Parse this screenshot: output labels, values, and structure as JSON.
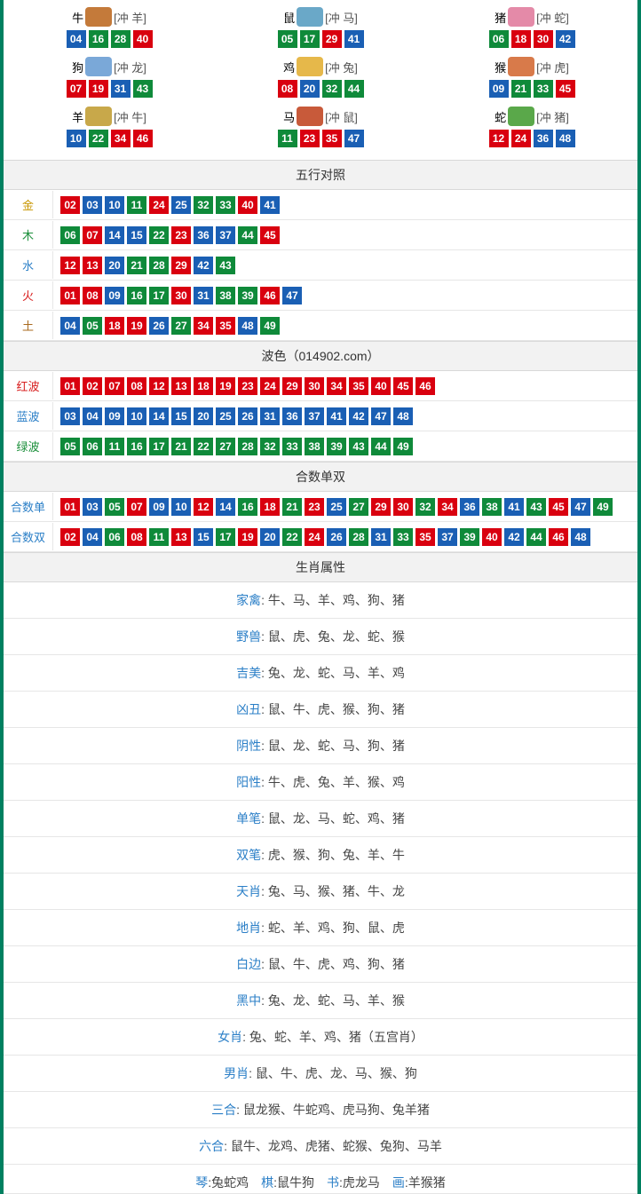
{
  "colors": {
    "red": "#d9000f",
    "blue": "#1a5fb4",
    "green": "#0f8a3a"
  },
  "zodiac_icon_colors": {
    "牛": "#c47a3a",
    "鼠": "#6aa8c8",
    "猪": "#e48aa8",
    "狗": "#7aa8d8",
    "鸡": "#e6b84a",
    "猴": "#d87a4a",
    "羊": "#c8a84a",
    "马": "#c85a3a",
    "蛇": "#5aa84a"
  },
  "zodiac": [
    {
      "name": "牛",
      "chong": "[冲 羊]",
      "balls": [
        [
          "04",
          "blue"
        ],
        [
          "16",
          "green"
        ],
        [
          "28",
          "green"
        ],
        [
          "40",
          "red"
        ]
      ]
    },
    {
      "name": "鼠",
      "chong": "[冲 马]",
      "balls": [
        [
          "05",
          "green"
        ],
        [
          "17",
          "green"
        ],
        [
          "29",
          "red"
        ],
        [
          "41",
          "blue"
        ]
      ]
    },
    {
      "name": "猪",
      "chong": "[冲 蛇]",
      "balls": [
        [
          "06",
          "green"
        ],
        [
          "18",
          "red"
        ],
        [
          "30",
          "red"
        ],
        [
          "42",
          "blue"
        ]
      ]
    },
    {
      "name": "狗",
      "chong": "[冲 龙]",
      "balls": [
        [
          "07",
          "red"
        ],
        [
          "19",
          "red"
        ],
        [
          "31",
          "blue"
        ],
        [
          "43",
          "green"
        ]
      ]
    },
    {
      "name": "鸡",
      "chong": "[冲 兔]",
      "balls": [
        [
          "08",
          "red"
        ],
        [
          "20",
          "blue"
        ],
        [
          "32",
          "green"
        ],
        [
          "44",
          "green"
        ]
      ]
    },
    {
      "name": "猴",
      "chong": "[冲 虎]",
      "balls": [
        [
          "09",
          "blue"
        ],
        [
          "21",
          "green"
        ],
        [
          "33",
          "green"
        ],
        [
          "45",
          "red"
        ]
      ]
    },
    {
      "name": "羊",
      "chong": "[冲 牛]",
      "balls": [
        [
          "10",
          "blue"
        ],
        [
          "22",
          "green"
        ],
        [
          "34",
          "red"
        ],
        [
          "46",
          "red"
        ]
      ]
    },
    {
      "name": "马",
      "chong": "[冲 鼠]",
      "balls": [
        [
          "11",
          "green"
        ],
        [
          "23",
          "red"
        ],
        [
          "35",
          "red"
        ],
        [
          "47",
          "blue"
        ]
      ]
    },
    {
      "name": "蛇",
      "chong": "[冲 猪]",
      "balls": [
        [
          "12",
          "red"
        ],
        [
          "24",
          "red"
        ],
        [
          "36",
          "blue"
        ],
        [
          "48",
          "blue"
        ]
      ]
    }
  ],
  "sections": {
    "wuxing_title": "五行对照",
    "bose_title": "波色（014902.com）",
    "heshu_title": "合数单双",
    "shengxiao_title": "生肖属性"
  },
  "wuxing": [
    {
      "label": "金",
      "cls": "lbl-gold",
      "balls": [
        [
          "02",
          "red"
        ],
        [
          "03",
          "blue"
        ],
        [
          "10",
          "blue"
        ],
        [
          "11",
          "green"
        ],
        [
          "24",
          "red"
        ],
        [
          "25",
          "blue"
        ],
        [
          "32",
          "green"
        ],
        [
          "33",
          "green"
        ],
        [
          "40",
          "red"
        ],
        [
          "41",
          "blue"
        ]
      ]
    },
    {
      "label": "木",
      "cls": "lbl-wood",
      "balls": [
        [
          "06",
          "green"
        ],
        [
          "07",
          "red"
        ],
        [
          "14",
          "blue"
        ],
        [
          "15",
          "blue"
        ],
        [
          "22",
          "green"
        ],
        [
          "23",
          "red"
        ],
        [
          "36",
          "blue"
        ],
        [
          "37",
          "blue"
        ],
        [
          "44",
          "green"
        ],
        [
          "45",
          "red"
        ]
      ]
    },
    {
      "label": "水",
      "cls": "lbl-water",
      "balls": [
        [
          "12",
          "red"
        ],
        [
          "13",
          "red"
        ],
        [
          "20",
          "blue"
        ],
        [
          "21",
          "green"
        ],
        [
          "28",
          "green"
        ],
        [
          "29",
          "red"
        ],
        [
          "42",
          "blue"
        ],
        [
          "43",
          "green"
        ]
      ]
    },
    {
      "label": "火",
      "cls": "lbl-fire",
      "balls": [
        [
          "01",
          "red"
        ],
        [
          "08",
          "red"
        ],
        [
          "09",
          "blue"
        ],
        [
          "16",
          "green"
        ],
        [
          "17",
          "green"
        ],
        [
          "30",
          "red"
        ],
        [
          "31",
          "blue"
        ],
        [
          "38",
          "green"
        ],
        [
          "39",
          "green"
        ],
        [
          "46",
          "red"
        ],
        [
          "47",
          "blue"
        ]
      ]
    },
    {
      "label": "土",
      "cls": "lbl-earth",
      "balls": [
        [
          "04",
          "blue"
        ],
        [
          "05",
          "green"
        ],
        [
          "18",
          "red"
        ],
        [
          "19",
          "red"
        ],
        [
          "26",
          "blue"
        ],
        [
          "27",
          "green"
        ],
        [
          "34",
          "red"
        ],
        [
          "35",
          "red"
        ],
        [
          "48",
          "blue"
        ],
        [
          "49",
          "green"
        ]
      ]
    }
  ],
  "bose": [
    {
      "label": "红波",
      "cls": "lbl-red",
      "balls": [
        [
          "01",
          "red"
        ],
        [
          "02",
          "red"
        ],
        [
          "07",
          "red"
        ],
        [
          "08",
          "red"
        ],
        [
          "12",
          "red"
        ],
        [
          "13",
          "red"
        ],
        [
          "18",
          "red"
        ],
        [
          "19",
          "red"
        ],
        [
          "23",
          "red"
        ],
        [
          "24",
          "red"
        ],
        [
          "29",
          "red"
        ],
        [
          "30",
          "red"
        ],
        [
          "34",
          "red"
        ],
        [
          "35",
          "red"
        ],
        [
          "40",
          "red"
        ],
        [
          "45",
          "red"
        ],
        [
          "46",
          "red"
        ]
      ]
    },
    {
      "label": "蓝波",
      "cls": "lbl-blue",
      "balls": [
        [
          "03",
          "blue"
        ],
        [
          "04",
          "blue"
        ],
        [
          "09",
          "blue"
        ],
        [
          "10",
          "blue"
        ],
        [
          "14",
          "blue"
        ],
        [
          "15",
          "blue"
        ],
        [
          "20",
          "blue"
        ],
        [
          "25",
          "blue"
        ],
        [
          "26",
          "blue"
        ],
        [
          "31",
          "blue"
        ],
        [
          "36",
          "blue"
        ],
        [
          "37",
          "blue"
        ],
        [
          "41",
          "blue"
        ],
        [
          "42",
          "blue"
        ],
        [
          "47",
          "blue"
        ],
        [
          "48",
          "blue"
        ]
      ]
    },
    {
      "label": "绿波",
      "cls": "lbl-green",
      "balls": [
        [
          "05",
          "green"
        ],
        [
          "06",
          "green"
        ],
        [
          "11",
          "green"
        ],
        [
          "16",
          "green"
        ],
        [
          "17",
          "green"
        ],
        [
          "21",
          "green"
        ],
        [
          "22",
          "green"
        ],
        [
          "27",
          "green"
        ],
        [
          "28",
          "green"
        ],
        [
          "32",
          "green"
        ],
        [
          "33",
          "green"
        ],
        [
          "38",
          "green"
        ],
        [
          "39",
          "green"
        ],
        [
          "43",
          "green"
        ],
        [
          "44",
          "green"
        ],
        [
          "49",
          "green"
        ]
      ]
    }
  ],
  "heshu": [
    {
      "label": "合数单",
      "cls": "lbl-odd",
      "balls": [
        [
          "01",
          "red"
        ],
        [
          "03",
          "blue"
        ],
        [
          "05",
          "green"
        ],
        [
          "07",
          "red"
        ],
        [
          "09",
          "blue"
        ],
        [
          "10",
          "blue"
        ],
        [
          "12",
          "red"
        ],
        [
          "14",
          "blue"
        ],
        [
          "16",
          "green"
        ],
        [
          "18",
          "red"
        ],
        [
          "21",
          "green"
        ],
        [
          "23",
          "red"
        ],
        [
          "25",
          "blue"
        ],
        [
          "27",
          "green"
        ],
        [
          "29",
          "red"
        ],
        [
          "30",
          "red"
        ],
        [
          "32",
          "green"
        ],
        [
          "34",
          "red"
        ],
        [
          "36",
          "blue"
        ],
        [
          "38",
          "green"
        ],
        [
          "41",
          "blue"
        ],
        [
          "43",
          "green"
        ],
        [
          "45",
          "red"
        ],
        [
          "47",
          "blue"
        ],
        [
          "49",
          "green"
        ]
      ]
    },
    {
      "label": "合数双",
      "cls": "lbl-odd",
      "balls": [
        [
          "02",
          "red"
        ],
        [
          "04",
          "blue"
        ],
        [
          "06",
          "green"
        ],
        [
          "08",
          "red"
        ],
        [
          "11",
          "green"
        ],
        [
          "13",
          "red"
        ],
        [
          "15",
          "blue"
        ],
        [
          "17",
          "green"
        ],
        [
          "19",
          "red"
        ],
        [
          "20",
          "blue"
        ],
        [
          "22",
          "green"
        ],
        [
          "24",
          "red"
        ],
        [
          "26",
          "blue"
        ],
        [
          "28",
          "green"
        ],
        [
          "31",
          "blue"
        ],
        [
          "33",
          "green"
        ],
        [
          "35",
          "red"
        ],
        [
          "37",
          "blue"
        ],
        [
          "39",
          "green"
        ],
        [
          "40",
          "red"
        ],
        [
          "42",
          "blue"
        ],
        [
          "44",
          "green"
        ],
        [
          "46",
          "red"
        ],
        [
          "48",
          "blue"
        ]
      ]
    }
  ],
  "attrs": [
    {
      "key": "家禽",
      "val": "牛、马、羊、鸡、狗、猪"
    },
    {
      "key": "野兽",
      "val": "鼠、虎、兔、龙、蛇、猴"
    },
    {
      "key": "吉美",
      "val": "兔、龙、蛇、马、羊、鸡"
    },
    {
      "key": "凶丑",
      "val": "鼠、牛、虎、猴、狗、猪"
    },
    {
      "key": "阴性",
      "val": "鼠、龙、蛇、马、狗、猪"
    },
    {
      "key": "阳性",
      "val": "牛、虎、兔、羊、猴、鸡"
    },
    {
      "key": "单笔",
      "val": "鼠、龙、马、蛇、鸡、猪"
    },
    {
      "key": "双笔",
      "val": "虎、猴、狗、兔、羊、牛"
    },
    {
      "key": "天肖",
      "val": "兔、马、猴、猪、牛、龙"
    },
    {
      "key": "地肖",
      "val": "蛇、羊、鸡、狗、鼠、虎"
    },
    {
      "key": "白边",
      "val": "鼠、牛、虎、鸡、狗、猪"
    },
    {
      "key": "黑中",
      "val": "兔、龙、蛇、马、羊、猴"
    },
    {
      "key": "女肖",
      "val": "兔、蛇、羊、鸡、猪（五宫肖）"
    },
    {
      "key": "男肖",
      "val": "鼠、牛、虎、龙、马、猴、狗"
    },
    {
      "key": "三合",
      "val": "鼠龙猴、牛蛇鸡、虎马狗、兔羊猪"
    },
    {
      "key": "六合",
      "val": "鼠牛、龙鸡、虎猪、蛇猴、兔狗、马羊"
    }
  ],
  "bottom_group": [
    {
      "key": "琴",
      "val": "兔蛇鸡"
    },
    {
      "key": "棋",
      "val": "鼠牛狗"
    },
    {
      "key": "书",
      "val": "虎龙马"
    },
    {
      "key": "画",
      "val": "羊猴猪"
    }
  ]
}
